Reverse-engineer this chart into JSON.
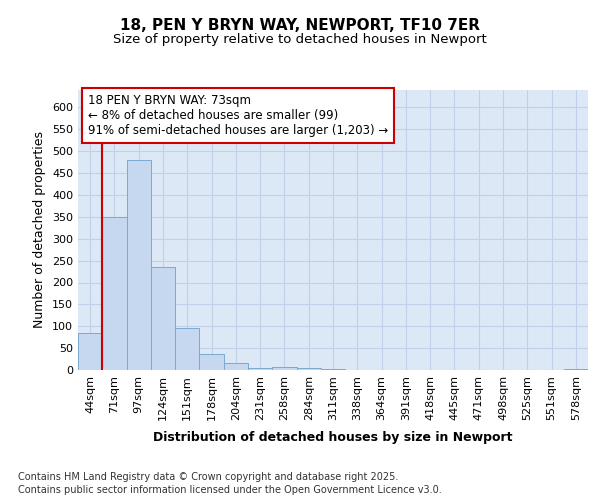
{
  "title_line1": "18, PEN Y BRYN WAY, NEWPORT, TF10 7ER",
  "title_line2": "Size of property relative to detached houses in Newport",
  "xlabel": "Distribution of detached houses by size in Newport",
  "ylabel": "Number of detached properties",
  "categories": [
    "44sqm",
    "71sqm",
    "97sqm",
    "124sqm",
    "151sqm",
    "178sqm",
    "204sqm",
    "231sqm",
    "258sqm",
    "284sqm",
    "311sqm",
    "338sqm",
    "364sqm",
    "391sqm",
    "418sqm",
    "445sqm",
    "471sqm",
    "498sqm",
    "525sqm",
    "551sqm",
    "578sqm"
  ],
  "bar_values": [
    84,
    350,
    479,
    236,
    96,
    36,
    17,
    5,
    7,
    5,
    3,
    1,
    0,
    0,
    0,
    0,
    0,
    0,
    0,
    0,
    2
  ],
  "bar_color": "#c5d8f0",
  "bar_edge_color": "#7aaad0",
  "vline_x_index": 1,
  "vline_color": "#cc0000",
  "ylim": [
    0,
    640
  ],
  "yticks": [
    0,
    50,
    100,
    150,
    200,
    250,
    300,
    350,
    400,
    450,
    500,
    550,
    600
  ],
  "annotation_text": "18 PEN Y BRYN WAY: 73sqm\n← 8% of detached houses are smaller (99)\n91% of semi-detached houses are larger (1,203) →",
  "annotation_box_color": "#ffffff",
  "annotation_box_edge": "#cc0000",
  "fig_bg_color": "#ffffff",
  "plot_bg_color": "#dce8f5",
  "grid_color": "#c0d0e8",
  "footer_text": "Contains HM Land Registry data © Crown copyright and database right 2025.\nContains public sector information licensed under the Open Government Licence v3.0.",
  "title_fontsize": 11,
  "subtitle_fontsize": 9.5,
  "axis_label_fontsize": 9,
  "tick_fontsize": 8,
  "annotation_fontsize": 8.5,
  "footer_fontsize": 7
}
